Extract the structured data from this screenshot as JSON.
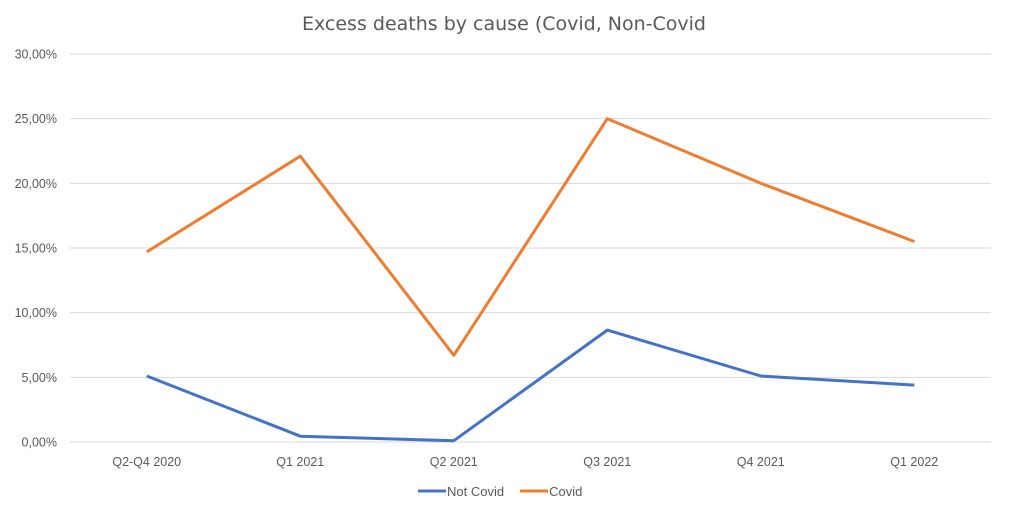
{
  "chart_data": {
    "type": "line",
    "title": "Excess deaths by cause (Covid, Non-Covid",
    "xlabel": "",
    "ylabel": "",
    "categories": [
      "Q2-Q4 2020",
      "Q1 2021",
      "Q2 2021",
      "Q3 2021",
      "Q4 2021",
      "Q1 2022"
    ],
    "series": [
      {
        "name": "Not Covid",
        "color": "#4472c4",
        "values": [
          5.1,
          0.45,
          0.1,
          8.65,
          5.1,
          4.4
        ]
      },
      {
        "name": "Covid",
        "color": "#ed7d31",
        "values": [
          14.7,
          22.1,
          6.7,
          25.0,
          20.0,
          15.5
        ]
      }
    ],
    "ylim": [
      0,
      30
    ],
    "yticks": [
      0,
      5,
      10,
      15,
      20,
      25,
      30
    ],
    "ytick_labels": [
      "0,00%",
      "5,00%",
      "10,00%",
      "15,00%",
      "20,00%",
      "25,00%",
      "30,00%"
    ],
    "grid": true,
    "legend_position": "bottom"
  }
}
